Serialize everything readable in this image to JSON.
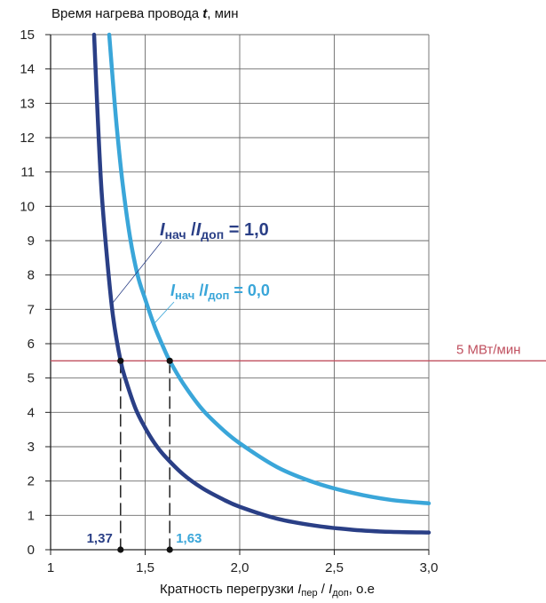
{
  "chart_data": {
    "type": "line",
    "ylabel_main": "Время нагрева провода ",
    "ylabel_var": "t",
    "ylabel_unit": ", мин",
    "xlabel_main": "Кратность перегрузки ",
    "xlabel_var1": "I",
    "xlabel_sub1": "пер",
    "xlabel_slash": " / ",
    "xlabel_var2": "I",
    "xlabel_sub2": "доп",
    "xlabel_unit": ", о.е",
    "xlim": [
      1.0,
      3.0
    ],
    "ylim": [
      0,
      15
    ],
    "x_ticks": [
      "1",
      "1,5",
      "2,0",
      "2,5",
      "3,0"
    ],
    "x_tick_values": [
      1.0,
      1.5,
      2.0,
      2.5,
      3.0
    ],
    "y_ticks": [
      "0",
      "1",
      "2",
      "3",
      "4",
      "5",
      "6",
      "7",
      "8",
      "9",
      "10",
      "11",
      "12",
      "13",
      "14",
      "15"
    ],
    "grid": true,
    "series": [
      {
        "label_var1": "I",
        "label_sub1": "нач",
        "label_slash": " /",
        "label_var2": "I",
        "label_sub2": "доп",
        "label_value": " = 1,0",
        "color": "#2a3f86",
        "x": [
          1.23,
          1.25,
          1.27,
          1.3,
          1.33,
          1.37,
          1.4,
          1.45,
          1.5,
          1.55,
          1.6,
          1.7,
          1.8,
          1.9,
          2.0,
          2.2,
          2.4,
          2.6,
          2.8,
          3.0
        ],
        "y": [
          15.0,
          12.5,
          10.4,
          8.4,
          6.8,
          5.5,
          4.9,
          4.1,
          3.55,
          3.1,
          2.75,
          2.2,
          1.8,
          1.5,
          1.25,
          0.9,
          0.7,
          0.58,
          0.52,
          0.5
        ]
      },
      {
        "label_var1": "I",
        "label_sub1": "нач",
        "label_slash": " /",
        "label_var2": "I",
        "label_sub2": "доп",
        "label_value": " = 0,0",
        "color": "#3aa6d9",
        "x": [
          1.31,
          1.33,
          1.35,
          1.38,
          1.42,
          1.46,
          1.5,
          1.55,
          1.6,
          1.63,
          1.7,
          1.8,
          1.9,
          2.0,
          2.2,
          2.4,
          2.6,
          2.8,
          3.0
        ],
        "y": [
          15.0,
          13.6,
          12.3,
          10.7,
          9.1,
          8.0,
          7.3,
          6.5,
          5.85,
          5.5,
          4.85,
          4.1,
          3.55,
          3.1,
          2.4,
          1.95,
          1.65,
          1.45,
          1.35
        ]
      }
    ],
    "reference_line": {
      "y": 5.5,
      "label": "5 МВт/мин",
      "color": "#c0505f"
    },
    "markers": [
      {
        "x": 1.37,
        "y": 5.5,
        "label": "1,37",
        "color": "#2a3f86"
      },
      {
        "x": 1.63,
        "y": 5.5,
        "label": "1,63",
        "color": "#3aa6d9"
      }
    ]
  }
}
